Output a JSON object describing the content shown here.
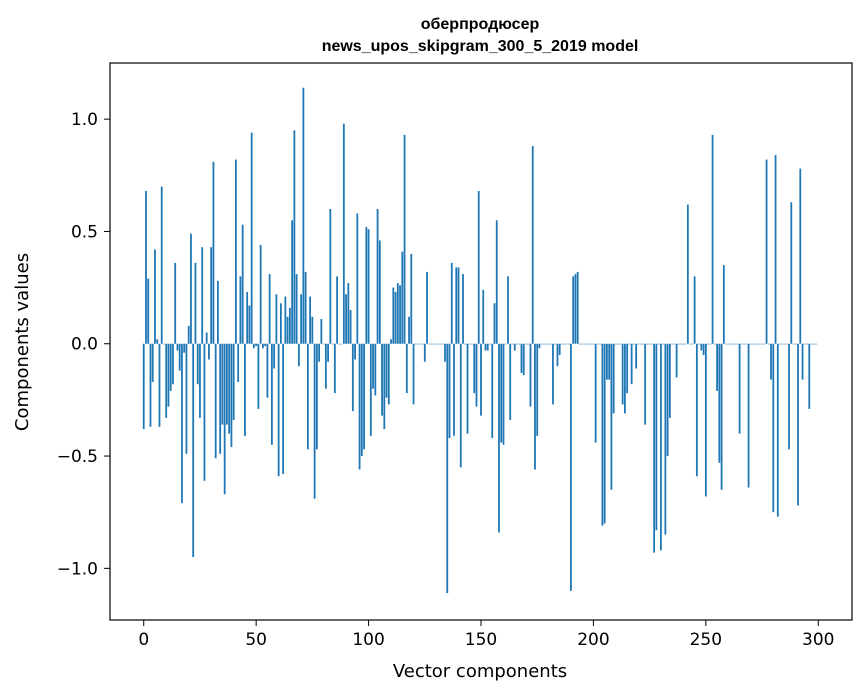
{
  "chart_data": {
    "type": "bar",
    "title": "оберпродюсер",
    "subtitle": "news_upos_skipgram_300_5_2019 model",
    "xlabel": "Vector components",
    "ylabel": "Components values",
    "xlim": [
      -15,
      315
    ],
    "ylim": [
      -1.23,
      1.25
    ],
    "xticks": [
      0,
      50,
      100,
      150,
      200,
      250,
      300
    ],
    "yticks": [
      -1.0,
      -0.5,
      0.0,
      0.5,
      1.0
    ],
    "ytick_labels": [
      "−1.0",
      "−0.5",
      "0.0",
      "0.5",
      "1.0"
    ],
    "bar_color": "#1f77b4",
    "grid": false,
    "values": [
      -0.38,
      0.68,
      0.29,
      -0.37,
      -0.17,
      0.42,
      0.02,
      -0.37,
      0.7,
      0.0,
      -0.33,
      -0.28,
      -0.21,
      -0.18,
      0.36,
      -0.03,
      -0.12,
      -0.71,
      -0.04,
      -0.49,
      0.08,
      0.49,
      -0.95,
      0.36,
      -0.18,
      -0.33,
      0.43,
      -0.61,
      0.05,
      -0.07,
      0.43,
      0.81,
      -0.51,
      0.28,
      -0.49,
      -0.36,
      -0.67,
      -0.36,
      -0.4,
      -0.46,
      -0.34,
      0.82,
      -0.17,
      0.3,
      0.53,
      -0.41,
      0.23,
      0.17,
      0.94,
      -0.02,
      -0.01,
      -0.29,
      0.44,
      -0.02,
      -0.01,
      -0.24,
      0.31,
      -0.45,
      -0.11,
      0.22,
      -0.59,
      0.18,
      -0.58,
      0.21,
      0.12,
      0.16,
      0.55,
      0.95,
      0.31,
      -0.1,
      0.22,
      1.14,
      0.32,
      -0.47,
      0.21,
      0.12,
      -0.69,
      -0.47,
      -0.08,
      0.11,
      0.0,
      -0.2,
      -0.08,
      0.6,
      0.0,
      -0.22,
      0.3,
      0.0,
      0.0,
      0.98,
      0.22,
      0.27,
      0.15,
      -0.3,
      -0.07,
      0.58,
      -0.56,
      -0.5,
      -0.47,
      0.52,
      0.51,
      -0.41,
      -0.2,
      -0.23,
      0.6,
      0.46,
      -0.32,
      -0.38,
      -0.24,
      -0.27,
      0.02,
      0.25,
      0.23,
      0.27,
      0.26,
      0.41,
      0.93,
      -0.22,
      0.12,
      0.4,
      -0.27,
      0.0,
      0.0,
      0.0,
      0.0,
      -0.08,
      0.32,
      0.0,
      0.0,
      0.0,
      0.0,
      0.0,
      0.0,
      0.0,
      -0.08,
      -1.11,
      -0.42,
      0.36,
      -0.41,
      0.34,
      0.34,
      -0.55,
      0.31,
      0.0,
      -0.4,
      0.0,
      0.0,
      -0.22,
      -0.28,
      0.68,
      -0.32,
      0.24,
      -0.03,
      -0.03,
      0.0,
      -0.42,
      0.18,
      0.55,
      -0.84,
      -0.44,
      -0.45,
      0.0,
      0.3,
      -0.34,
      0.0,
      -0.03,
      0.0,
      0.0,
      -0.13,
      -0.14,
      0.0,
      0.0,
      -0.28,
      0.88,
      -0.56,
      -0.41,
      -0.02,
      0.0,
      0.0,
      0.0,
      0.0,
      0.0,
      -0.27,
      0.0,
      -0.1,
      -0.05,
      0.0,
      0.0,
      0.0,
      0.0,
      -1.1,
      0.3,
      0.31,
      0.32,
      0.0,
      0.0,
      0.0,
      0.0,
      0.0,
      0.0,
      0.0,
      -0.44,
      0.0,
      0.0,
      -0.81,
      -0.8,
      -0.16,
      -0.16,
      -0.65,
      -0.31,
      0.0,
      0.0,
      0.0,
      -0.27,
      -0.31,
      -0.22,
      0.0,
      -0.18,
      0.0,
      -0.11,
      0.0,
      0.0,
      0.0,
      -0.36,
      0.0,
      0.0,
      0.0,
      -0.93,
      -0.83,
      0.0,
      -0.92,
      0.0,
      -0.85,
      -0.5,
      -0.33,
      0.0,
      0.0,
      -0.15,
      0.0,
      0.0,
      0.0,
      0.0,
      0.62,
      0.0,
      0.0,
      0.3,
      -0.59,
      0.0,
      -0.03,
      -0.05,
      -0.68,
      0.0,
      0.0,
      0.93,
      0.0,
      -0.21,
      -0.53,
      -0.65,
      0.35,
      0.0,
      0.0,
      0.0,
      0.0,
      0.0,
      0.0,
      -0.4,
      0.0,
      0.0,
      0.0,
      -0.64,
      0.0,
      0.0,
      0.0,
      0.0,
      0.0,
      0.0,
      0.0,
      0.82,
      0.0,
      -0.16,
      -0.75,
      0.84,
      -0.77,
      0.0,
      0.0,
      0.0,
      0.0,
      -0.47,
      0.63,
      0.0,
      0.0,
      -0.72,
      0.78,
      -0.16,
      0.0,
      0.0,
      -0.29,
      0.0,
      0.0,
      0.0
    ]
  }
}
